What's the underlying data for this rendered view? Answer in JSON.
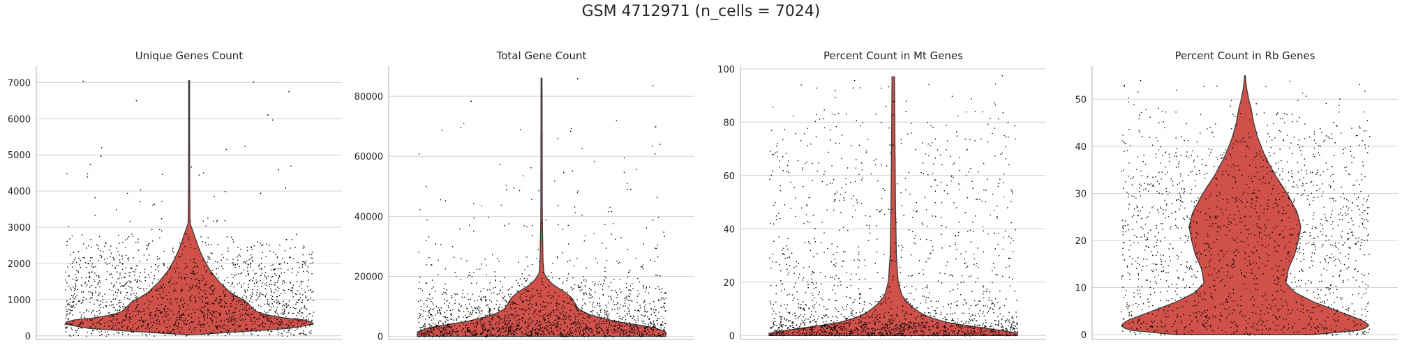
{
  "figure": {
    "suptitle": "GSM 4712971 (n_cells = 7024)"
  },
  "style": {
    "violin_fill": "#d0504a",
    "violin_edge": "#3a3a3a",
    "point_color": "#000000",
    "grid_color": "#d0d0d0",
    "axis_color": "#b0b0b0",
    "grid": true
  },
  "chart_data": [
    {
      "type": "violin",
      "title": "Unique Genes Count",
      "xlabel": "",
      "ylabel": "",
      "ylim": [
        -100,
        7450
      ],
      "yticks": [
        0,
        1000,
        2000,
        3000,
        4000,
        5000,
        6000,
        7000
      ],
      "ytick_labels": [
        "0",
        "1000",
        "2000",
        "3000",
        "4000",
        "5000",
        "6000",
        "7000"
      ],
      "violin_profile": [
        [
          30,
          0.02
        ],
        [
          100,
          0.35
        ],
        [
          200,
          0.8
        ],
        [
          320,
          1.0
        ],
        [
          420,
          0.98
        ],
        [
          520,
          0.7
        ],
        [
          650,
          0.55
        ],
        [
          800,
          0.5
        ],
        [
          950,
          0.46
        ],
        [
          1050,
          0.4
        ],
        [
          1200,
          0.33
        ],
        [
          1500,
          0.24
        ],
        [
          1800,
          0.17
        ],
        [
          2100,
          0.12
        ],
        [
          2400,
          0.08
        ],
        [
          2700,
          0.05
        ],
        [
          2900,
          0.03
        ],
        [
          3100,
          0.008
        ],
        [
          4000,
          0.005
        ],
        [
          5500,
          0.004
        ],
        [
          7050,
          0.004
        ]
      ],
      "jitter_density": [
        [
          0,
          0.6
        ],
        [
          300,
          1.0
        ],
        [
          600,
          0.9
        ],
        [
          1000,
          0.75
        ],
        [
          1500,
          0.6
        ],
        [
          2000,
          0.45
        ],
        [
          2500,
          0.25
        ],
        [
          2700,
          0.1
        ],
        [
          3000,
          0.03
        ],
        [
          3600,
          0.01
        ],
        [
          7050,
          0.0
        ]
      ],
      "n_points": 1800,
      "outliers": [
        [
          -0.3,
          7050
        ],
        [
          0.18,
          7030
        ],
        [
          0.28,
          6760
        ],
        [
          0.22,
          6120
        ],
        [
          -0.15,
          6510
        ],
        [
          0.25,
          4600
        ],
        [
          -0.25,
          4980
        ],
        [
          -0.28,
          4750
        ],
        [
          0.1,
          4000
        ],
        [
          0.2,
          3950
        ],
        [
          -0.1,
          3650
        ],
        [
          0.27,
          4100
        ]
      ]
    },
    {
      "type": "violin",
      "title": "Total Gene Count",
      "xlabel": "",
      "ylabel": "",
      "ylim": [
        -1000,
        90000
      ],
      "yticks": [
        0,
        20000,
        40000,
        60000,
        80000
      ],
      "ytick_labels": [
        "0",
        "20000",
        "40000",
        "60000",
        "80000"
      ],
      "violin_profile": [
        [
          0,
          1.0
        ],
        [
          1500,
          1.0
        ],
        [
          3000,
          0.9
        ],
        [
          5000,
          0.6
        ],
        [
          7000,
          0.4
        ],
        [
          9000,
          0.3
        ],
        [
          11000,
          0.27
        ],
        [
          13000,
          0.24
        ],
        [
          15000,
          0.18
        ],
        [
          17000,
          0.1
        ],
        [
          19000,
          0.05
        ],
        [
          21000,
          0.02
        ],
        [
          25000,
          0.012
        ],
        [
          40000,
          0.006
        ],
        [
          86000,
          0.004
        ]
      ],
      "jitter_density": [
        [
          0,
          1.0
        ],
        [
          2000,
          0.9
        ],
        [
          5000,
          0.55
        ],
        [
          10000,
          0.35
        ],
        [
          15000,
          0.2
        ],
        [
          20000,
          0.1
        ],
        [
          25000,
          0.04
        ],
        [
          30000,
          0.015
        ],
        [
          90000,
          0.0
        ]
      ],
      "n_points": 1800,
      "outliers": [
        [
          -0.2,
          78500
        ],
        [
          -0.1,
          49000
        ],
        [
          0.25,
          49200
        ],
        [
          0.1,
          86000
        ],
        [
          0.32,
          70000
        ],
        [
          0.0,
          38000
        ],
        [
          -0.3,
          31000
        ]
      ]
    },
    {
      "type": "violin",
      "title": "Percent Count in Mt Genes",
      "xlabel": "",
      "ylabel": "",
      "ylim": [
        -1.5,
        101
      ],
      "yticks": [
        0,
        20,
        40,
        60,
        80,
        100
      ],
      "ytick_labels": [
        "0",
        "20",
        "40",
        "60",
        "80",
        "100"
      ],
      "violin_profile": [
        [
          0,
          1.0
        ],
        [
          1,
          1.0
        ],
        [
          2,
          0.85
        ],
        [
          3,
          0.7
        ],
        [
          4,
          0.55
        ],
        [
          5,
          0.42
        ],
        [
          7,
          0.28
        ],
        [
          9,
          0.2
        ],
        [
          12,
          0.12
        ],
        [
          15,
          0.07
        ],
        [
          20,
          0.04
        ],
        [
          30,
          0.025
        ],
        [
          50,
          0.018
        ],
        [
          70,
          0.014
        ],
        [
          97,
          0.01
        ]
      ],
      "jitter_density": [
        [
          0,
          1.0
        ],
        [
          3,
          0.9
        ],
        [
          6,
          0.4
        ],
        [
          10,
          0.18
        ],
        [
          15,
          0.1
        ],
        [
          20,
          0.07
        ],
        [
          40,
          0.05
        ],
        [
          60,
          0.04
        ],
        [
          80,
          0.03
        ],
        [
          90,
          0.015
        ],
        [
          100,
          0.0
        ]
      ],
      "n_points": 1800,
      "outliers": []
    },
    {
      "type": "violin",
      "title": "Percent Count in Rb Genes",
      "xlabel": "",
      "ylabel": "",
      "ylim": [
        -1,
        57
      ],
      "yticks": [
        0,
        10,
        20,
        30,
        40,
        50
      ],
      "ytick_labels": [
        "0",
        "10",
        "20",
        "30",
        "40",
        "50"
      ],
      "violin_profile": [
        [
          0,
          0.55
        ],
        [
          1,
          0.95
        ],
        [
          2,
          1.0
        ],
        [
          3,
          0.95
        ],
        [
          5,
          0.75
        ],
        [
          7,
          0.55
        ],
        [
          9,
          0.4
        ],
        [
          11,
          0.33
        ],
        [
          14,
          0.35
        ],
        [
          17,
          0.4
        ],
        [
          20,
          0.43
        ],
        [
          23,
          0.45
        ],
        [
          26,
          0.42
        ],
        [
          30,
          0.34
        ],
        [
          34,
          0.24
        ],
        [
          38,
          0.16
        ],
        [
          42,
          0.1
        ],
        [
          45,
          0.07
        ],
        [
          48,
          0.05
        ],
        [
          50,
          0.03
        ],
        [
          52,
          0.015
        ],
        [
          54,
          0.006
        ],
        [
          55,
          0.003
        ]
      ],
      "jitter_density": [
        [
          0,
          0.95
        ],
        [
          2,
          1.0
        ],
        [
          5,
          0.75
        ],
        [
          10,
          0.6
        ],
        [
          15,
          0.65
        ],
        [
          20,
          0.7
        ],
        [
          25,
          0.68
        ],
        [
          30,
          0.6
        ],
        [
          35,
          0.48
        ],
        [
          40,
          0.35
        ],
        [
          45,
          0.2
        ],
        [
          48,
          0.12
        ],
        [
          50,
          0.06
        ],
        [
          53,
          0.02
        ],
        [
          55,
          0.0
        ]
      ],
      "n_points": 1800,
      "outliers": []
    }
  ]
}
